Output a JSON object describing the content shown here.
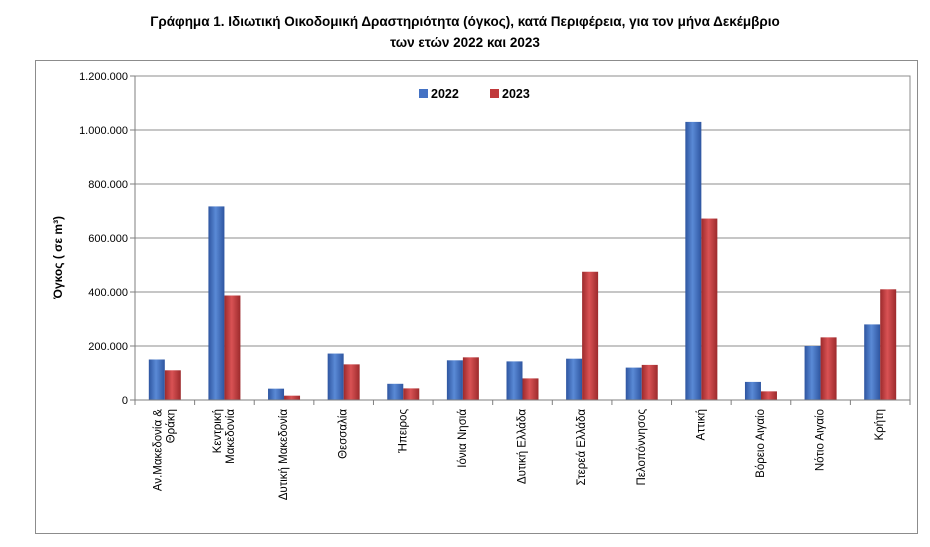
{
  "title": {
    "line1": "Γράφημα 1.  Ιδιωτική Οικοδομική Δραστηριότητα (όγκος), κατά Περιφέρεια, για τον μήνα Δεκέμβριο",
    "line2": "των ετών 2022 και 2023"
  },
  "chart_data": {
    "type": "bar",
    "title": "Γράφημα 1.  Ιδιωτική Οικοδομική Δραστηριότητα (όγκος), κατά Περιφέρεια, για τον μήνα Δεκέμβριο των ετών 2022 και 2023",
    "ylabel": "Όγκος ( σε  m³)",
    "xlabel": "",
    "ylim": [
      0,
      1200000
    ],
    "yticks": [
      0,
      200000,
      400000,
      600000,
      800000,
      1000000,
      1200000
    ],
    "ytick_labels": [
      "0",
      "200.000",
      "400.000",
      "600.000",
      "800.000",
      "1.000.000",
      "1.200.000"
    ],
    "grid": true,
    "legend_position": "top-center",
    "categories": [
      [
        "Αν.Μακεδονία &",
        "Θράκη"
      ],
      [
        "Κεντρική",
        "Μακεδονία"
      ],
      [
        "Δυτική Μακεδονία"
      ],
      [
        "Θεσσαλία"
      ],
      [
        "Ήπειρος"
      ],
      [
        "Ιόνια Νησιά"
      ],
      [
        "Δυτική Ελλάδα"
      ],
      [
        "Στερεά Ελλάδα"
      ],
      [
        "Πελοπόννησος"
      ],
      [
        "Αττική"
      ],
      [
        "Βόρειο Αιγαίο"
      ],
      [
        "Νότιο Αιγαίο"
      ],
      [
        "Κρήτη"
      ]
    ],
    "series": [
      {
        "name": "2022",
        "color": "#4472c4",
        "values": [
          150000,
          717000,
          42000,
          172000,
          60000,
          147000,
          143000,
          153000,
          120000,
          1030000,
          67000,
          200000,
          280000
        ]
      },
      {
        "name": "2023",
        "color": "#c0393b",
        "values": [
          110000,
          387000,
          16000,
          132000,
          43000,
          158000,
          80000,
          475000,
          130000,
          672000,
          32000,
          232000,
          410000
        ]
      }
    ]
  }
}
